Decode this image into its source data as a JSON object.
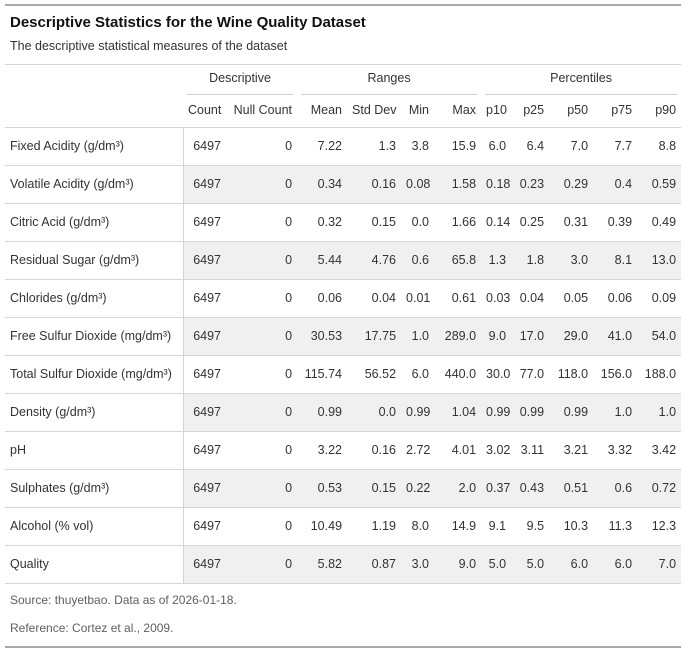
{
  "chart_data": {
    "type": "table",
    "title": "Descriptive Statistics for the Wine Quality Dataset",
    "subtitle": "The descriptive statistical measures of the dataset",
    "column_groups": [
      {
        "label": "Descriptive",
        "span": 2
      },
      {
        "label": "Ranges",
        "span": 4
      },
      {
        "label": "Percentiles",
        "span": 5
      }
    ],
    "columns": [
      "Count",
      "Null Count",
      "Mean",
      "Std Dev",
      "Min",
      "Max",
      "p10",
      "p25",
      "p50",
      "p75",
      "p90"
    ],
    "rows": [
      {
        "label": "Fixed Acidity (g/dm³)",
        "values": [
          "6497",
          "0",
          "7.22",
          "1.3",
          "3.8",
          "15.9",
          "6.0",
          "6.4",
          "7.0",
          "7.7",
          "8.8"
        ]
      },
      {
        "label": "Volatile Acidity (g/dm³)",
        "values": [
          "6497",
          "0",
          "0.34",
          "0.16",
          "0.08",
          "1.58",
          "0.18",
          "0.23",
          "0.29",
          "0.4",
          "0.59"
        ]
      },
      {
        "label": "Citric Acid (g/dm³)",
        "values": [
          "6497",
          "0",
          "0.32",
          "0.15",
          "0.0",
          "1.66",
          "0.14",
          "0.25",
          "0.31",
          "0.39",
          "0.49"
        ]
      },
      {
        "label": "Residual Sugar (g/dm³)",
        "values": [
          "6497",
          "0",
          "5.44",
          "4.76",
          "0.6",
          "65.8",
          "1.3",
          "1.8",
          "3.0",
          "8.1",
          "13.0"
        ]
      },
      {
        "label": "Chlorides (g/dm³)",
        "values": [
          "6497",
          "0",
          "0.06",
          "0.04",
          "0.01",
          "0.61",
          "0.03",
          "0.04",
          "0.05",
          "0.06",
          "0.09"
        ]
      },
      {
        "label": "Free Sulfur Dioxide (mg/dm³)",
        "values": [
          "6497",
          "0",
          "30.53",
          "17.75",
          "1.0",
          "289.0",
          "9.0",
          "17.0",
          "29.0",
          "41.0",
          "54.0"
        ]
      },
      {
        "label": "Total Sulfur Dioxide (mg/dm³)",
        "values": [
          "6497",
          "0",
          "115.74",
          "56.52",
          "6.0",
          "440.0",
          "30.0",
          "77.0",
          "118.0",
          "156.0",
          "188.0"
        ]
      },
      {
        "label": "Density (g/dm³)",
        "values": [
          "6497",
          "0",
          "0.99",
          "0.0",
          "0.99",
          "1.04",
          "0.99",
          "0.99",
          "0.99",
          "1.0",
          "1.0"
        ]
      },
      {
        "label": "pH",
        "values": [
          "6497",
          "0",
          "3.22",
          "0.16",
          "2.72",
          "4.01",
          "3.02",
          "3.11",
          "3.21",
          "3.32",
          "3.42"
        ]
      },
      {
        "label": "Sulphates (g/dm³)",
        "values": [
          "6497",
          "0",
          "0.53",
          "0.15",
          "0.22",
          "2.0",
          "0.37",
          "0.43",
          "0.51",
          "0.6",
          "0.72"
        ]
      },
      {
        "label": "Alcohol (% vol)",
        "values": [
          "6497",
          "0",
          "10.49",
          "1.19",
          "8.0",
          "14.9",
          "9.1",
          "9.5",
          "10.3",
          "11.3",
          "12.3"
        ]
      },
      {
        "label": "Quality",
        "values": [
          "6497",
          "0",
          "5.82",
          "0.87",
          "3.0",
          "9.0",
          "5.0",
          "5.0",
          "6.0",
          "6.0",
          "7.0"
        ]
      }
    ],
    "source_note": "Source: thuyetbao. Data as of 2026-01-18.",
    "reference_note": "Reference: Cortez et al., 2009.",
    "layout_hints": {
      "striped_rows": "even",
      "stub_divider": true,
      "numeric_alignment": "right"
    }
  },
  "colors": {
    "background": "#ffffff",
    "stripe": "#f0f0f0",
    "border_light": "#d3d3d3",
    "border_heavy": "#a8a8a8",
    "body_text": "#333333",
    "title_text": "#111111",
    "footnote_text": "#5f5f5f"
  }
}
